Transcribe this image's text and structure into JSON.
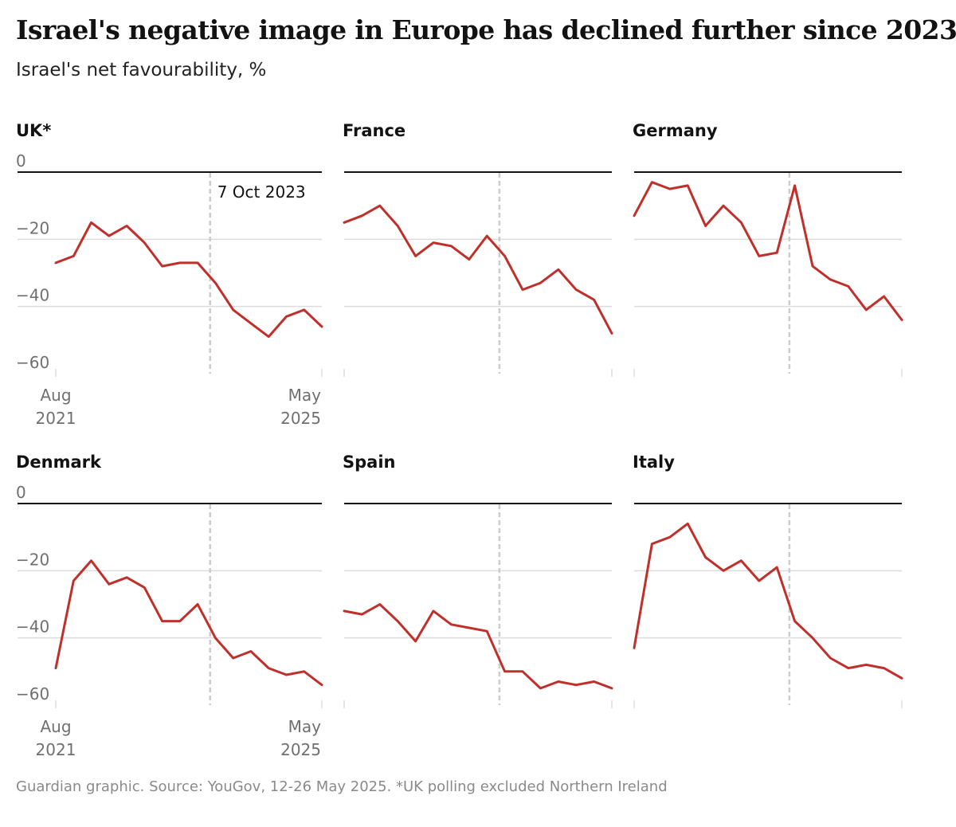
{
  "title": "Israel's negative image in Europe has declined further since 2023",
  "subtitle": "Israel's net favourability, %",
  "footer": "Guardian graphic. Source: YouGov, 12-26 May 2025. *UK polling excluded Northern Ireland",
  "colors": {
    "line": "#c0302b",
    "zero_line": "#121212",
    "gridline": "#dcdcdc",
    "marker": "#cccccc"
  },
  "chart_data": {
    "type": "line",
    "layout": "small-multiples",
    "ylim": [
      -60,
      0
    ],
    "yticks": [
      0,
      -20,
      -40,
      -60
    ],
    "x_start_label": [
      "Aug",
      "2021"
    ],
    "x_end_label": [
      "May",
      "2025"
    ],
    "annotation": "7 Oct 2023",
    "series": [
      {
        "name": "UK*",
        "values": [
          -27,
          -25,
          -15,
          -19,
          -16,
          -21,
          -28,
          -27,
          -27,
          -33,
          -41,
          -45,
          -49,
          -43,
          -41,
          -46
        ]
      },
      {
        "name": "France",
        "values": [
          -15,
          -13,
          -10,
          -16,
          -25,
          -21,
          -22,
          -26,
          -19,
          -25,
          -35,
          -33,
          -29,
          -35,
          -38,
          -48
        ]
      },
      {
        "name": "Germany",
        "values": [
          -13,
          -3,
          -5,
          -4,
          -16,
          -10,
          -15,
          -25,
          -24,
          -4,
          -28,
          -32,
          -34,
          -41,
          -37,
          -44
        ]
      },
      {
        "name": "Denmark",
        "values": [
          -49,
          -23,
          -17,
          -24,
          -22,
          -25,
          -35,
          -35,
          -30,
          -40,
          -46,
          -44,
          -49,
          -51,
          -50,
          -54
        ]
      },
      {
        "name": "Spain",
        "values": [
          -32,
          -33,
          -30,
          -35,
          -41,
          -32,
          -36,
          -37,
          -38,
          -50,
          -50,
          -55,
          -53,
          -54,
          -53,
          -55
        ]
      },
      {
        "name": "Italy",
        "values": [
          -43,
          -12,
          -10,
          -6,
          -16,
          -20,
          -17,
          -23,
          -19,
          -35,
          -40,
          -46,
          -49,
          -48,
          -49,
          -52
        ]
      }
    ]
  }
}
